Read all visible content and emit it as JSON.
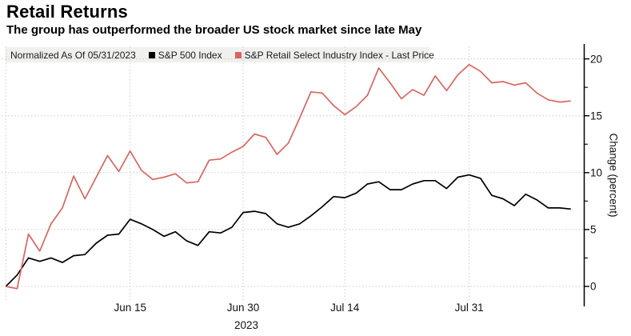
{
  "header": {
    "title": "Retail Returns",
    "subtitle": "The group has outperformed the broader US stock market since late May"
  },
  "legend": {
    "note": "Normalized As Of 05/31/2023",
    "series1": "S&P 500 Index",
    "series2": "S&P Retail Select Industry Index - Last Price"
  },
  "colors": {
    "sp500": "#000000",
    "retail": "#d96562",
    "grid": "#c9c9c9",
    "axis": "#000000",
    "legend_bg": "#f0f0ee"
  },
  "chart_data": {
    "type": "line",
    "title": "Retail Returns",
    "subtitle": "The group has outperformed the broader US stock market since late May",
    "ylabel": "Change (percent)",
    "xlabel": "",
    "y_ticks": [
      0,
      5,
      10,
      15,
      20
    ],
    "y_minor_ticks": [
      2.5,
      7.5,
      12.5,
      17.5
    ],
    "ylim": [
      -1.8,
      21.3
    ],
    "grid": true,
    "legend_position": "top",
    "year_label": "2023",
    "x_dates": [
      "05/31",
      "06/01",
      "06/02",
      "06/05",
      "06/06",
      "06/07",
      "06/08",
      "06/09",
      "06/12",
      "06/13",
      "06/14",
      "06/15",
      "06/16",
      "06/20",
      "06/21",
      "06/22",
      "06/23",
      "06/26",
      "06/27",
      "06/28",
      "06/29",
      "06/30",
      "07/03",
      "07/05",
      "07/06",
      "07/07",
      "07/10",
      "07/11",
      "07/12",
      "07/13",
      "07/14",
      "07/17",
      "07/18",
      "07/19",
      "07/20",
      "07/21",
      "07/24",
      "07/25",
      "07/26",
      "07/27",
      "07/28",
      "07/31",
      "08/01",
      "08/02",
      "08/03",
      "08/04",
      "08/07",
      "08/08",
      "08/09",
      "08/10",
      "08/11"
    ],
    "x_ticks": [
      {
        "label": "Jun 15",
        "index": 11
      },
      {
        "label": "Jun 30",
        "index": 21
      },
      {
        "label": "Jul 14",
        "index": 30
      },
      {
        "label": "Jul 31",
        "index": 41
      }
    ],
    "series": [
      {
        "name": "S&P 500 Index",
        "color": "#000000",
        "values": [
          0.0,
          1.0,
          2.5,
          2.2,
          2.5,
          2.1,
          2.7,
          2.8,
          3.8,
          4.5,
          4.6,
          5.9,
          5.5,
          5.0,
          4.4,
          4.8,
          4.0,
          3.6,
          4.8,
          4.7,
          5.2,
          6.5,
          6.6,
          6.4,
          5.5,
          5.2,
          5.5,
          6.2,
          7.0,
          7.9,
          7.8,
          8.2,
          9.0,
          9.2,
          8.5,
          8.5,
          9.0,
          9.3,
          9.3,
          8.6,
          9.6,
          9.8,
          9.5,
          8.0,
          7.7,
          7.1,
          8.1,
          7.6,
          6.9,
          6.9,
          6.8
        ]
      },
      {
        "name": "S&P Retail Select Industry Index - Last Price",
        "color": "#d96562",
        "values": [
          0.0,
          -0.2,
          4.6,
          3.1,
          5.5,
          6.9,
          9.7,
          7.7,
          9.6,
          11.5,
          10.1,
          11.9,
          10.2,
          9.4,
          9.6,
          9.9,
          9.1,
          9.2,
          11.1,
          11.2,
          11.8,
          12.3,
          13.4,
          13.1,
          11.6,
          12.6,
          14.8,
          17.1,
          17.0,
          15.9,
          15.1,
          15.8,
          16.8,
          19.2,
          17.9,
          16.5,
          17.3,
          16.8,
          18.5,
          17.2,
          18.6,
          19.5,
          18.9,
          17.9,
          18.0,
          17.7,
          17.9,
          17.0,
          16.4,
          16.2,
          16.3
        ]
      }
    ]
  }
}
